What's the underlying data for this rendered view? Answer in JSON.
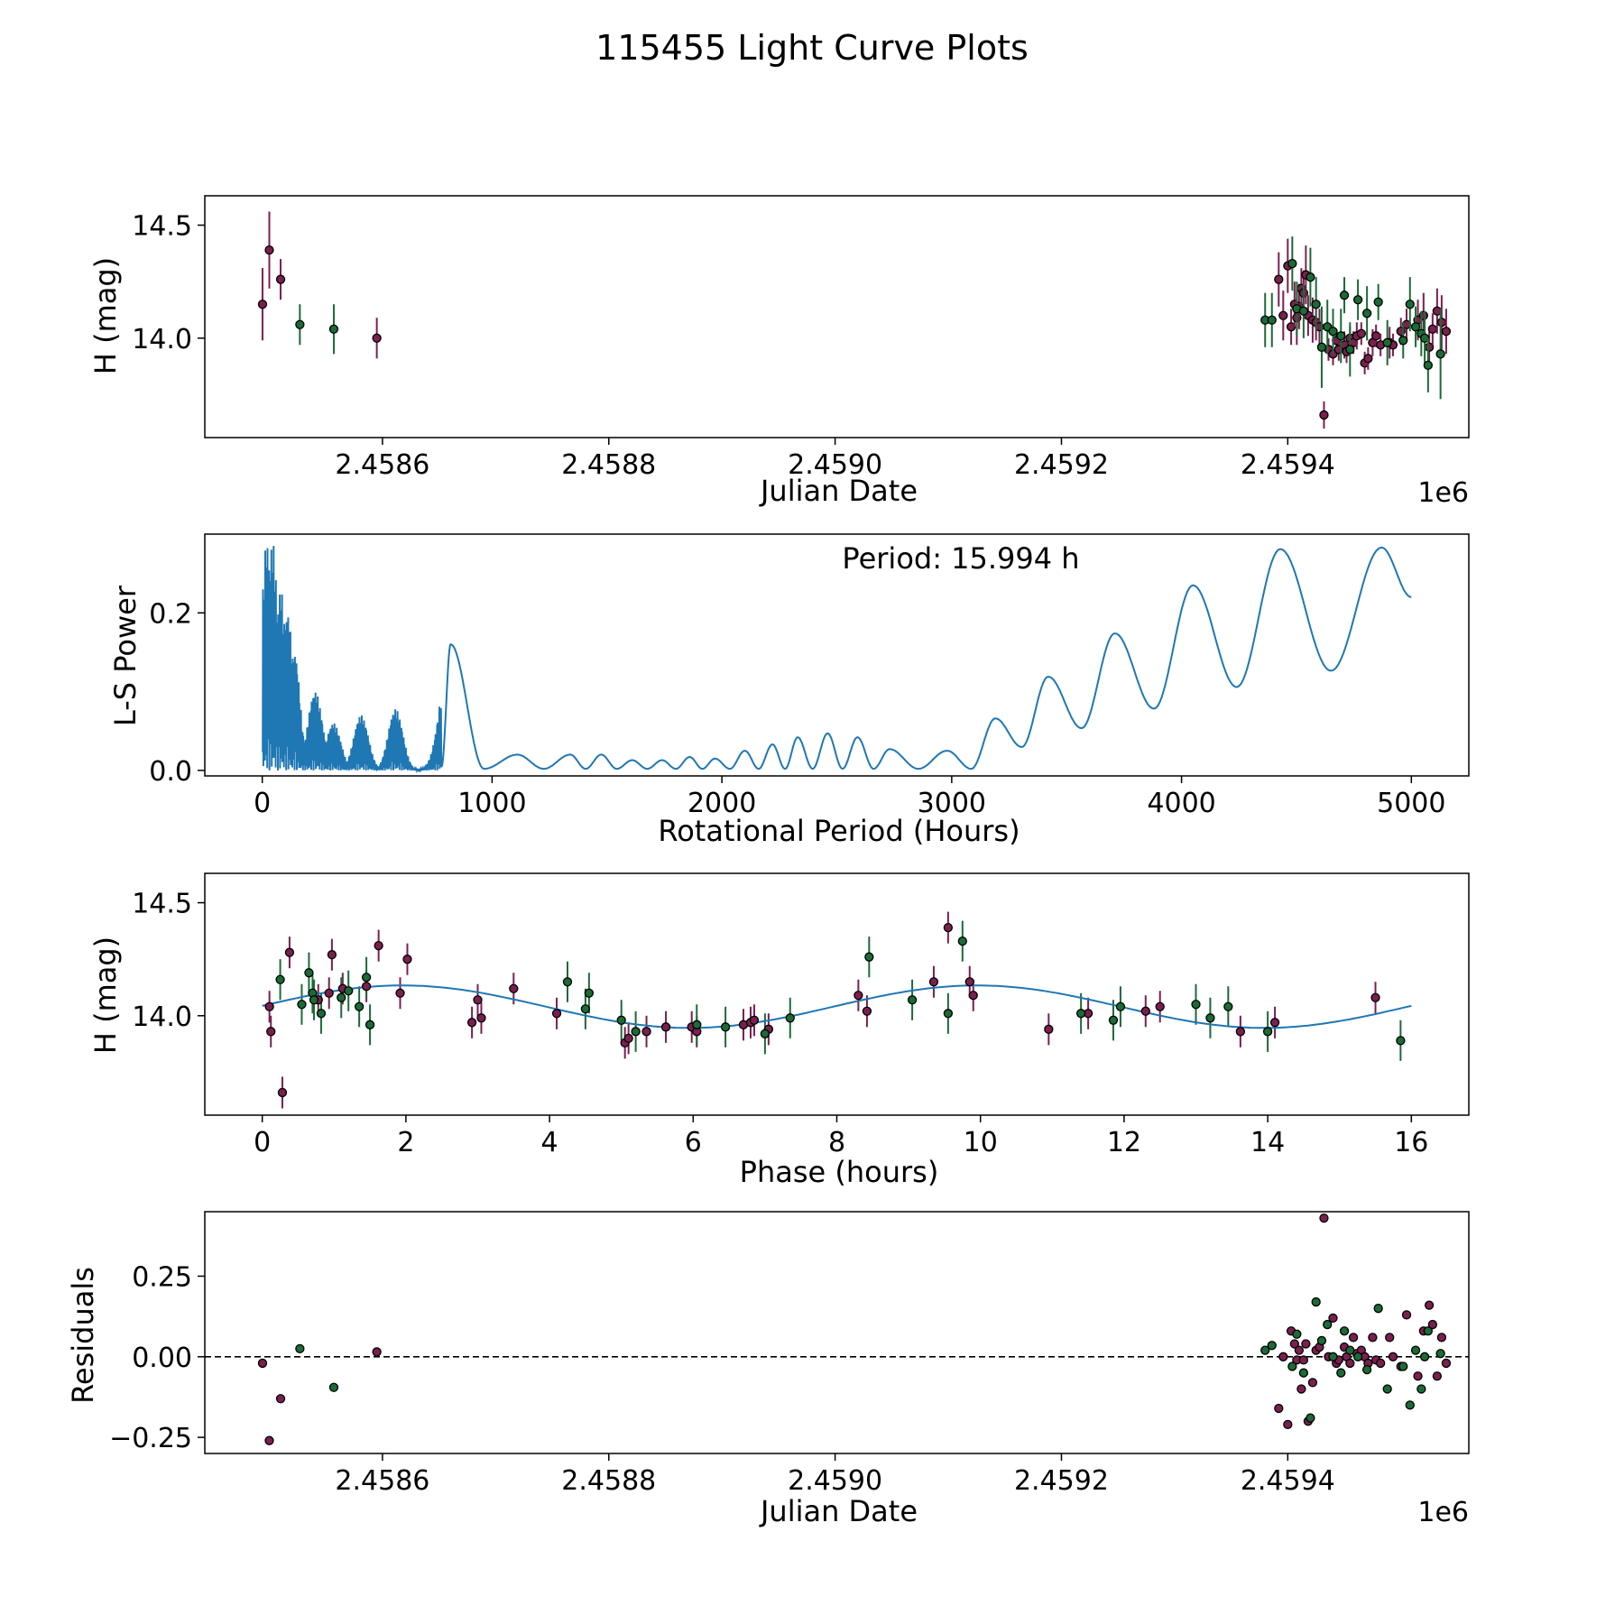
{
  "title": "115455 Light Curve Plots",
  "colors": {
    "purple_marker": "#7b1f4f",
    "green_marker": "#1a6b35",
    "curve": "#1f77b4",
    "axis": "#000000"
  },
  "chart_data": [
    {
      "id": "lightcurve",
      "type": "scatter",
      "xlabel": "Julian Date",
      "ylabel": "H (mag)",
      "x_offset_label": "1e6",
      "xlim": [
        2458443,
        2459560
      ],
      "ylim": [
        13.56,
        14.63
      ],
      "xticks": [
        2458600,
        2458800,
        2459000,
        2459200,
        2459400
      ],
      "xtick_labels": [
        "2.4586",
        "2.4588",
        "2.4590",
        "2.4592",
        "2.4594"
      ],
      "yticks": [
        14.0,
        14.5
      ],
      "ytick_labels": [
        "14.0",
        "14.5"
      ],
      "series": [
        {
          "name": "purple",
          "color": "#7b1f4f",
          "x": [
            2458494,
            2458500,
            2458510,
            2458595,
            2459392,
            2459396,
            2459400,
            2459403,
            2459406,
            2459408,
            2459410,
            2459412,
            2459414,
            2459416,
            2459418,
            2459422,
            2459425,
            2459428,
            2459432,
            2459436,
            2459440,
            2459443,
            2459445,
            2459450,
            2459452,
            2459455,
            2459458,
            2459461,
            2459465,
            2459468,
            2459471,
            2459475,
            2459478,
            2459482,
            2459490,
            2459493,
            2459500,
            2459505,
            2459515,
            2459520,
            2459525,
            2459528,
            2459532,
            2459536,
            2459540
          ],
          "y": [
            14.15,
            14.39,
            14.26,
            14.0,
            14.26,
            14.1,
            14.32,
            14.05,
            14.15,
            14.09,
            14.14,
            14.22,
            14.2,
            14.28,
            14.1,
            14.08,
            14.07,
            14.05,
            13.66,
            13.95,
            13.93,
            13.99,
            13.95,
            13.97,
            13.94,
            14.0,
            13.98,
            14.01,
            14.02,
            13.89,
            13.91,
            13.98,
            14.01,
            13.97,
            13.98,
            13.97,
            14.03,
            14.06,
            14.08,
            14.1,
            13.96,
            14.04,
            14.12,
            14.07,
            14.03
          ],
          "err": [
            0.16,
            0.17,
            0.09,
            0.09,
            0.12,
            0.11,
            0.12,
            0.08,
            0.1,
            0.12,
            0.1,
            0.09,
            0.1,
            0.13,
            0.09,
            0.1,
            0.08,
            0.08,
            0.06,
            0.05,
            0.05,
            0.05,
            0.05,
            0.06,
            0.05,
            0.05,
            0.05,
            0.06,
            0.05,
            0.05,
            0.05,
            0.06,
            0.05,
            0.05,
            0.07,
            0.05,
            0.06,
            0.07,
            0.09,
            0.1,
            0.07,
            0.07,
            0.1,
            0.12,
            0.1
          ]
        },
        {
          "name": "green",
          "color": "#1a6b35",
          "x": [
            2458527,
            2458557,
            2459380,
            2459386,
            2459404,
            2459408,
            2459414,
            2459420,
            2459425,
            2459430,
            2459435,
            2459440,
            2459447,
            2459450,
            2459455,
            2459462,
            2459470,
            2459480,
            2459488,
            2459502,
            2459508,
            2459513,
            2459518,
            2459521,
            2459524,
            2459535
          ],
          "y": [
            14.06,
            14.04,
            14.08,
            14.08,
            14.33,
            14.13,
            14.12,
            14.27,
            14.15,
            13.96,
            14.05,
            14.03,
            14.01,
            14.19,
            13.95,
            14.17,
            14.11,
            14.16,
            13.98,
            13.99,
            14.15,
            14.05,
            14.02,
            14.0,
            13.88,
            13.93
          ],
          "err": [
            0.09,
            0.11,
            0.12,
            0.12,
            0.12,
            0.12,
            0.12,
            0.13,
            0.12,
            0.18,
            0.12,
            0.1,
            0.12,
            0.08,
            0.12,
            0.09,
            0.12,
            0.08,
            0.1,
            0.08,
            0.12,
            0.09,
            0.1,
            0.12,
            0.12,
            0.2
          ]
        }
      ]
    },
    {
      "id": "periodogram",
      "type": "line",
      "xlabel": "Rotational Period (Hours)",
      "ylabel": "L-S Power",
      "annotation": "Period: 15.994 h",
      "xlim": [
        -250,
        5250
      ],
      "ylim": [
        -0.007,
        0.3
      ],
      "xticks": [
        0,
        1000,
        2000,
        3000,
        4000,
        5000
      ],
      "xtick_labels": [
        "0",
        "1000",
        "2000",
        "3000",
        "4000",
        "5000"
      ],
      "yticks": [
        0.0,
        0.2
      ],
      "ytick_labels": [
        "0.0",
        "0.2"
      ],
      "peaks": [
        {
          "period": 20,
          "power": 0.29
        },
        {
          "period": 45,
          "power": 0.29
        },
        {
          "period": 80,
          "power": 0.23
        },
        {
          "period": 110,
          "power": 0.2
        },
        {
          "period": 140,
          "power": 0.15
        },
        {
          "period": 230,
          "power": 0.1
        },
        {
          "period": 310,
          "power": 0.06
        },
        {
          "period": 430,
          "power": 0.07
        },
        {
          "period": 580,
          "power": 0.078
        },
        {
          "period": 820,
          "power": 0.16
        },
        {
          "period": 1110,
          "power": 0.02
        },
        {
          "period": 1340,
          "power": 0.02
        },
        {
          "period": 1475,
          "power": 0.02
        },
        {
          "period": 1610,
          "power": 0.013
        },
        {
          "period": 1740,
          "power": 0.013
        },
        {
          "period": 1860,
          "power": 0.017
        },
        {
          "period": 1970,
          "power": 0.015
        },
        {
          "period": 2100,
          "power": 0.025
        },
        {
          "period": 2220,
          "power": 0.033
        },
        {
          "period": 2330,
          "power": 0.042
        },
        {
          "period": 2460,
          "power": 0.047
        },
        {
          "period": 2590,
          "power": 0.042
        },
        {
          "period": 2730,
          "power": 0.027
        },
        {
          "period": 2980,
          "power": 0.025
        },
        {
          "period": 3190,
          "power": 0.066
        },
        {
          "period": 3420,
          "power": 0.119
        },
        {
          "period": 3710,
          "power": 0.174
        },
        {
          "period": 4050,
          "power": 0.235
        },
        {
          "period": 4430,
          "power": 0.281
        },
        {
          "period": 4870,
          "power": 0.283
        }
      ],
      "end": {
        "period": 5000,
        "power": 0.22
      }
    },
    {
      "id": "phased",
      "type": "scatter",
      "xlabel": "Phase (hours)",
      "ylabel": "H (mag)",
      "xlim": [
        -0.8,
        16.8
      ],
      "ylim": [
        13.56,
        14.63
      ],
      "xticks": [
        0,
        2,
        4,
        6,
        8,
        10,
        12,
        14,
        16
      ],
      "xtick_labels": [
        "0",
        "2",
        "4",
        "6",
        "8",
        "10",
        "12",
        "14",
        "16"
      ],
      "yticks": [
        14.0,
        14.5
      ],
      "ytick_labels": [
        "14.0",
        "14.5"
      ],
      "model": {
        "mean": 14.04,
        "amplitude": 0.094,
        "period": 8.0,
        "phase_of_max": 1.95
      },
      "series": [
        {
          "name": "purple",
          "color": "#7b1f4f",
          "x": [
            0.1,
            0.12,
            0.28,
            0.38,
            0.78,
            0.93,
            0.97,
            1.12,
            1.45,
            1.62,
            1.92,
            2.02,
            2.92,
            3.0,
            3.05,
            3.5,
            4.1,
            5.05,
            5.1,
            5.35,
            5.62,
            5.98,
            6.05,
            6.7,
            6.8,
            6.85,
            7.05,
            8.3,
            8.42,
            9.35,
            9.55,
            9.85,
            9.9,
            10.95,
            11.5,
            12.3,
            12.5,
            13.62,
            14.1,
            15.5
          ],
          "y": [
            14.04,
            13.93,
            13.66,
            14.28,
            14.07,
            14.1,
            14.27,
            14.12,
            14.13,
            14.31,
            14.1,
            14.25,
            13.97,
            14.07,
            13.99,
            14.12,
            14.01,
            13.88,
            13.9,
            13.93,
            13.95,
            13.95,
            13.93,
            13.96,
            13.97,
            13.98,
            13.94,
            14.09,
            14.02,
            14.15,
            14.39,
            14.15,
            14.09,
            13.94,
            14.01,
            14.02,
            14.04,
            13.93,
            13.97,
            14.08
          ]
        },
        {
          "name": "green",
          "color": "#1a6b35",
          "x": [
            0.25,
            0.55,
            0.65,
            0.7,
            0.72,
            0.82,
            1.1,
            1.2,
            1.35,
            1.45,
            1.5,
            4.25,
            4.55,
            4.5,
            5.0,
            5.2,
            6.05,
            6.45,
            7.0,
            7.35,
            8.45,
            9.05,
            9.55,
            9.75,
            11.4,
            11.85,
            11.95,
            13.0,
            13.2,
            13.45,
            14.0,
            15.85
          ],
          "y": [
            14.16,
            14.05,
            14.19,
            14.1,
            14.07,
            14.01,
            14.08,
            14.11,
            14.04,
            14.17,
            13.96,
            14.15,
            14.1,
            14.03,
            13.98,
            13.93,
            13.96,
            13.95,
            13.92,
            13.99,
            14.26,
            14.07,
            14.01,
            14.33,
            14.01,
            13.98,
            14.04,
            14.05,
            13.99,
            14.04,
            13.93,
            13.89
          ]
        }
      ]
    },
    {
      "id": "residuals",
      "type": "scatter",
      "xlabel": "Julian Date",
      "ylabel": "Residuals",
      "x_offset_label": "1e6",
      "xlim": [
        2458443,
        2459560
      ],
      "ylim": [
        -0.3,
        0.45
      ],
      "xticks": [
        2458600,
        2458800,
        2459000,
        2459200,
        2459400
      ],
      "xtick_labels": [
        "2.4586",
        "2.4588",
        "2.4590",
        "2.4592",
        "2.4594"
      ],
      "yticks": [
        -0.25,
        0.0,
        0.25
      ],
      "ytick_labels": [
        "−0.25",
        "0.00",
        "0.25"
      ],
      "zero_line": 0,
      "series": [
        {
          "name": "purple",
          "color": "#7b1f4f",
          "x": [
            2458494,
            2458500,
            2458510,
            2458595,
            2459392,
            2459396,
            2459400,
            2459403,
            2459406,
            2459408,
            2459410,
            2459412,
            2459414,
            2459416,
            2459418,
            2459422,
            2459425,
            2459428,
            2459432,
            2459436,
            2459440,
            2459443,
            2459445,
            2459450,
            2459452,
            2459455,
            2459458,
            2459461,
            2459465,
            2459468,
            2459471,
            2459475,
            2459478,
            2459482,
            2459490,
            2459493,
            2459500,
            2459505,
            2459515,
            2459520,
            2459525,
            2459528,
            2459532,
            2459536,
            2459540
          ],
          "y": [
            -0.02,
            -0.26,
            -0.13,
            0.015,
            -0.16,
            0.0,
            -0.21,
            0.08,
            0.04,
            -0.01,
            0.02,
            -0.1,
            -0.01,
            0.04,
            -0.2,
            -0.08,
            0.02,
            0.03,
            0.43,
            0.0,
            0.12,
            -0.02,
            -0.01,
            0.03,
            0.0,
            -0.02,
            0.06,
            0.01,
            0.02,
            0.0,
            -0.02,
            0.06,
            -0.01,
            -0.02,
            0.06,
            0.0,
            -0.03,
            0.13,
            -0.06,
            0.08,
            0.16,
            0.1,
            -0.06,
            0.06,
            -0.02
          ]
        },
        {
          "name": "green",
          "color": "#1a6b35",
          "x": [
            2458527,
            2458557,
            2459380,
            2459386,
            2459404,
            2459408,
            2459414,
            2459420,
            2459425,
            2459430,
            2459435,
            2459440,
            2459447,
            2459450,
            2459455,
            2459462,
            2459470,
            2459480,
            2459488,
            2459502,
            2459508,
            2459513,
            2459518,
            2459521,
            2459524,
            2459535
          ],
          "y": [
            0.025,
            -0.095,
            0.02,
            0.035,
            -0.03,
            0.07,
            -0.05,
            -0.19,
            0.17,
            0.05,
            0.1,
            0.0,
            -0.05,
            0.08,
            0.02,
            0.0,
            -0.04,
            0.15,
            -0.1,
            -0.03,
            -0.15,
            0.02,
            -0.1,
            0.0,
            0.08,
            0.01
          ]
        }
      ]
    }
  ]
}
